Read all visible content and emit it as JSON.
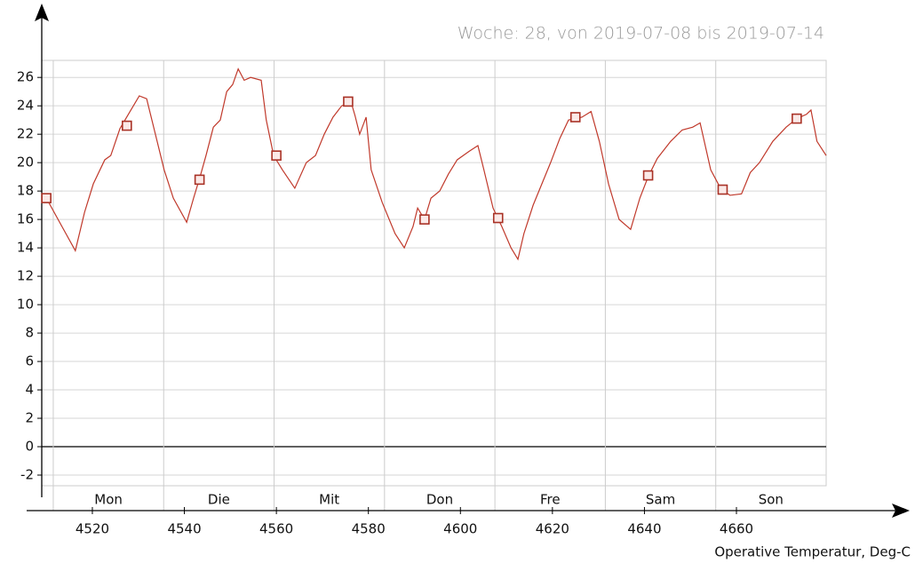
{
  "chart_data": {
    "type": "line",
    "title": "Woche: 28, von 2019-07-08 bis 2019-07-14",
    "axis_label": "Operative Temperatur, Deg-C",
    "days": [
      "Mon",
      "Die",
      "Mit",
      "Don",
      "Fre",
      "Sam",
      "Son"
    ],
    "xlim": [
      4509,
      4679.5
    ],
    "xticks": [
      4520,
      4540,
      4560,
      4580,
      4600,
      4620,
      4640,
      4660
    ],
    "ylim": [
      -2.75,
      27.2
    ],
    "yticks": [
      -2,
      0,
      2,
      4,
      6,
      8,
      10,
      12,
      14,
      16,
      18,
      20,
      22,
      24,
      26
    ],
    "grid": true,
    "series": [
      {
        "color": "#c0392b",
        "x": [
          4510,
          4513.4,
          4516.3,
          4518.3,
          4520.2,
          4522.7,
          4524,
          4526,
          4528,
          4530.2,
          4531.8,
          4533.7,
          4535.6,
          4537.6,
          4540.5,
          4542,
          4543.4,
          4544.7,
          4546.3,
          4547.8,
          4549.2,
          4550.5,
          4551.7,
          4553,
          4554.4,
          4556.7,
          4557.8,
          4559.4,
          4561.3,
          4564,
          4566.5,
          4568.5,
          4570.4,
          4572.3,
          4574.2,
          4576.2,
          4577.1,
          4578.1,
          4579.5,
          4580.6,
          4583,
          4585.8,
          4587.8,
          4589.7,
          4590.7,
          4592.2,
          4593.6,
          4595.5,
          4597.4,
          4599.3,
          4601.9,
          4603.8,
          4605.1,
          4607.1,
          4609,
          4611,
          4612.5,
          4613.8,
          4615.8,
          4617.7,
          4619.6,
          4621.6,
          4623.5,
          4626.4,
          4628.4,
          4630.2,
          4632.2,
          4634.5,
          4637,
          4639,
          4640.8,
          4642.8,
          4645.7,
          4648.2,
          4650.5,
          4652.1,
          4654.4,
          4656.7,
          4658.6,
          4661.1,
          4663,
          4665,
          4667.9,
          4670.8,
          4673.1,
          4675.2,
          4676.2,
          4677.5,
          4679.5
        ],
        "values": [
          17.5,
          15.5,
          13.8,
          16.5,
          18.5,
          20.2,
          20.5,
          22.4,
          23.5,
          24.7,
          24.5,
          22,
          19.5,
          17.5,
          15.8,
          17.5,
          19,
          20.5,
          22.5,
          23,
          25,
          25.5,
          26.6,
          25.8,
          26,
          25.8,
          23,
          20.5,
          19.5,
          18.2,
          20,
          20.5,
          22,
          23.2,
          24,
          24.3,
          23.3,
          22,
          23.2,
          19.5,
          17.2,
          15,
          14,
          15.5,
          16.8,
          16,
          17.5,
          18,
          19.2,
          20.2,
          20.8,
          21.2,
          19.5,
          16.8,
          15.5,
          14,
          13.2,
          15,
          17,
          18.5,
          20,
          21.7,
          23,
          23.2,
          23.6,
          21.5,
          18.5,
          16,
          15.3,
          17.5,
          19,
          20.3,
          21.5,
          22.3,
          22.5,
          22.8,
          19.5,
          18.1,
          17.7,
          17.8,
          19.3,
          20,
          21.5,
          22.5,
          23.1,
          23.4,
          23.7,
          21.5,
          20.5
        ]
      }
    ],
    "markers": {
      "color": "#a93226",
      "x": [
        4510,
        4527.5,
        4543.3,
        4560,
        4575.6,
        4592.2,
        4608.2,
        4625,
        4640.8,
        4657,
        4673.1
      ],
      "values": [
        17.5,
        22.6,
        18.8,
        20.5,
        24.3,
        16,
        16.1,
        23.2,
        19.1,
        18.1,
        23.1
      ]
    }
  }
}
